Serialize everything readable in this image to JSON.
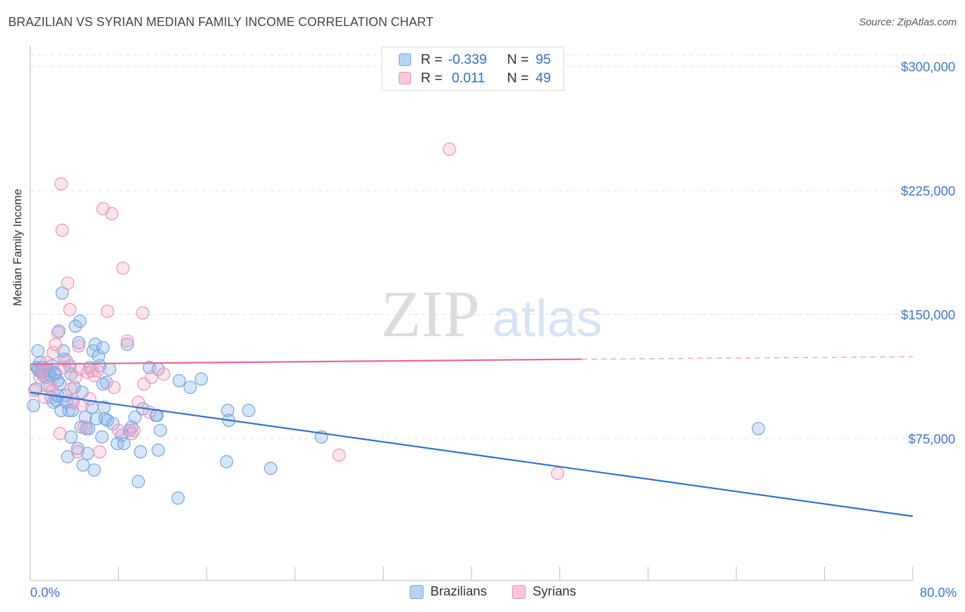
{
  "title": "BRAZILIAN VS SYRIAN MEDIAN FAMILY INCOME CORRELATION CHART",
  "source": "Source: ZipAtlas.com",
  "watermark": {
    "zip": "ZIP",
    "atlas": "atlas"
  },
  "legend_stats": {
    "r_label": "R =",
    "n_label": "N =",
    "brazilians": {
      "r": "-0.339",
      "n": "95"
    },
    "syrians": {
      "r": " 0.011",
      "n": "49"
    }
  },
  "chart_data": {
    "type": "scatter",
    "title": "BRAZILIAN VS SYRIAN MEDIAN FAMILY INCOME CORRELATION CHART",
    "xlabel": "",
    "ylabel": "Median Family Income",
    "xlim": [
      0,
      80
    ],
    "ylim": [
      0,
      300000
    ],
    "x_tick_labels": [
      "0.0%",
      "80.0%"
    ],
    "y_ticks": [
      75000,
      150000,
      225000,
      300000
    ],
    "y_tick_labels": [
      "$75,000",
      "$150,000",
      "$225,000",
      "$300,000"
    ],
    "colors": {
      "brazilians": "#6fa3e3",
      "syrians": "#ee91b2",
      "blue_line": "#2e6fd1",
      "pink_line": "#e96592",
      "axis_text": "#3a77d4"
    },
    "series": [
      {
        "name": "Brazilians",
        "r": -0.339,
        "n": 95,
        "trend": {
          "x0": 0,
          "y0": 103000,
          "x1": 80,
          "y1": 28000
        },
        "points": [
          [
            0.3,
            95000
          ],
          [
            0.5,
            105000
          ],
          [
            0.6,
            118000
          ],
          [
            0.7,
            128000
          ],
          [
            0.8,
            116000
          ],
          [
            0.9,
            121000
          ],
          [
            1.0,
            115000
          ],
          [
            1.1,
            118000
          ],
          [
            1.2,
            113000
          ],
          [
            1.3,
            116000
          ],
          [
            1.4,
            117000
          ],
          [
            1.5,
            112000
          ],
          [
            1.6,
            107000
          ],
          [
            1.7,
            116000
          ],
          [
            1.8,
            113000
          ],
          [
            1.9,
            100000
          ],
          [
            2.0,
            119000
          ],
          [
            2.1,
            97000
          ],
          [
            2.2,
            115000
          ],
          [
            2.3,
            114000
          ],
          [
            2.4,
            98000
          ],
          [
            2.5,
            101000
          ],
          [
            2.6,
            140000
          ],
          [
            2.7,
            108000
          ],
          [
            2.8,
            92000
          ],
          [
            2.9,
            163000
          ],
          [
            3.0,
            128000
          ],
          [
            3.1,
            123000
          ],
          [
            3.2,
            101000
          ],
          [
            3.3,
            97000
          ],
          [
            3.4,
            64000
          ],
          [
            3.5,
            92000
          ],
          [
            3.6,
            119000
          ],
          [
            3.7,
            76000
          ],
          [
            3.8,
            92000
          ],
          [
            3.9,
            97000
          ],
          [
            4.0,
            106000
          ],
          [
            4.1,
            143000
          ],
          [
            4.3,
            69000
          ],
          [
            4.4,
            133000
          ],
          [
            4.5,
            146000
          ],
          [
            4.6,
            82000
          ],
          [
            4.7,
            103000
          ],
          [
            4.8,
            59000
          ],
          [
            5.0,
            88000
          ],
          [
            5.1,
            81000
          ],
          [
            5.2,
            66000
          ],
          [
            5.3,
            81000
          ],
          [
            5.4,
            118000
          ],
          [
            5.6,
            94000
          ],
          [
            5.7,
            128000
          ],
          [
            5.8,
            56000
          ],
          [
            5.9,
            132000
          ],
          [
            6.0,
            87000
          ],
          [
            6.2,
            125000
          ],
          [
            6.3,
            119000
          ],
          [
            6.5,
            76000
          ],
          [
            6.6,
            130000
          ],
          [
            6.7,
            94000
          ],
          [
            6.8,
            87000
          ],
          [
            6.9,
            109000
          ],
          [
            7.0,
            86000
          ],
          [
            7.2,
            117000
          ],
          [
            7.5,
            84000
          ],
          [
            7.9,
            72000
          ],
          [
            8.3,
            77000
          ],
          [
            8.5,
            72000
          ],
          [
            8.8,
            132000
          ],
          [
            9.0,
            80000
          ],
          [
            9.2,
            82000
          ],
          [
            9.5,
            88000
          ],
          [
            9.8,
            49000
          ],
          [
            10.0,
            67000
          ],
          [
            10.2,
            93000
          ],
          [
            10.8,
            118000
          ],
          [
            11.4,
            89000
          ],
          [
            11.6,
            117000
          ],
          [
            11.8,
            80000
          ],
          [
            11.6,
            68000
          ],
          [
            11.5,
            89000
          ],
          [
            13.4,
            39000
          ],
          [
            13.5,
            110000
          ],
          [
            14.5,
            106000
          ],
          [
            15.5,
            111000
          ],
          [
            17.8,
            61000
          ],
          [
            17.9,
            92000
          ],
          [
            18.0,
            86000
          ],
          [
            19.8,
            92000
          ],
          [
            21.8,
            57000
          ],
          [
            26.4,
            76000
          ],
          [
            66.0,
            81000
          ],
          [
            2.5,
            110000
          ],
          [
            6.6,
            108000
          ],
          [
            0.7,
            117000
          ],
          [
            3.7,
            114000
          ]
        ]
      },
      {
        "name": "Syrians",
        "r": 0.011,
        "n": 49,
        "trend": {
          "x0": 0,
          "y0": 120000,
          "x1": 50,
          "y1": 123000,
          "dashed_to_x": 80,
          "dashed_to_y": 124500
        },
        "points": [
          [
            0.4,
            104000
          ],
          [
            0.9,
            112000
          ],
          [
            1.1,
            116000
          ],
          [
            1.3,
            100000
          ],
          [
            1.5,
            121000
          ],
          [
            1.8,
            107000
          ],
          [
            2.0,
            104000
          ],
          [
            2.1,
            127000
          ],
          [
            2.5,
            139000
          ],
          [
            2.7,
            78000
          ],
          [
            2.8,
            229000
          ],
          [
            2.9,
            201000
          ],
          [
            3.1,
            118000
          ],
          [
            3.3,
            122000
          ],
          [
            3.4,
            169000
          ],
          [
            3.6,
            153000
          ],
          [
            3.7,
            105000
          ],
          [
            3.9,
            97000
          ],
          [
            4.1,
            112000
          ],
          [
            4.3,
            67000
          ],
          [
            4.4,
            131000
          ],
          [
            4.5,
            117000
          ],
          [
            4.7,
            95000
          ],
          [
            4.9,
            82000
          ],
          [
            5.2,
            115000
          ],
          [
            5.4,
            99000
          ],
          [
            5.6,
            116000
          ],
          [
            5.8,
            113000
          ],
          [
            6.1,
            116000
          ],
          [
            6.3,
            67000
          ],
          [
            6.6,
            214000
          ],
          [
            7.0,
            152000
          ],
          [
            7.4,
            211000
          ],
          [
            7.6,
            106000
          ],
          [
            8.0,
            80000
          ],
          [
            8.4,
            178000
          ],
          [
            8.8,
            134000
          ],
          [
            9.2,
            78000
          ],
          [
            9.4,
            80000
          ],
          [
            9.8,
            97000
          ],
          [
            10.3,
            108000
          ],
          [
            10.8,
            91000
          ],
          [
            11.0,
            112000
          ],
          [
            10.2,
            151000
          ],
          [
            12.1,
            114000
          ],
          [
            28.0,
            65000
          ],
          [
            38.0,
            250000
          ],
          [
            47.8,
            54000
          ],
          [
            2.3,
            132000
          ]
        ]
      }
    ]
  },
  "bottom_legend": {
    "brazilians": "Brazilians",
    "syrians": "Syrians"
  }
}
